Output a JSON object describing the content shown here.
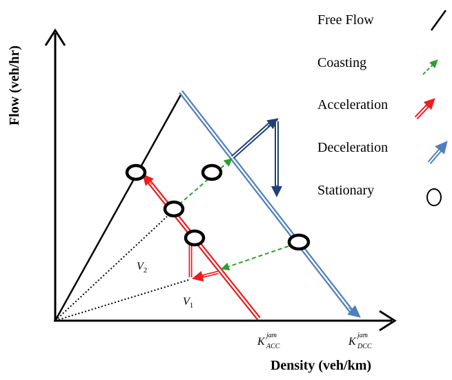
{
  "axes": {
    "y_label": "Flow (veh/hr)",
    "x_label": "Density (veh/km)"
  },
  "curve_labels": {
    "v2": {
      "base": "V",
      "sub": "2"
    },
    "v1": {
      "base": "V",
      "sub": "1"
    },
    "k_acc": {
      "base": "K",
      "sub": "ACC",
      "sup": "jam"
    },
    "k_dcc": {
      "base": "K",
      "sub": "DCC",
      "sup": "jam"
    }
  },
  "legend": [
    {
      "label": "Free Flow",
      "icon": "solid-black-line-icon"
    },
    {
      "label": "Coasting",
      "icon": "dashed-green-arrow-icon"
    },
    {
      "label": "Acceleration",
      "icon": "double-red-arrow-icon"
    },
    {
      "label": "Deceleration",
      "icon": "double-blue-arrow-icon"
    },
    {
      "label": "Stationary",
      "icon": "circle-icon"
    }
  ],
  "colors": {
    "free_flow": "#000000",
    "coasting": "#2ca02c",
    "acceleration": "#ee1c1c",
    "deceleration": "#4f7fc0",
    "deceleration_dark": "#1f3f78",
    "stationary": "#000000"
  }
}
